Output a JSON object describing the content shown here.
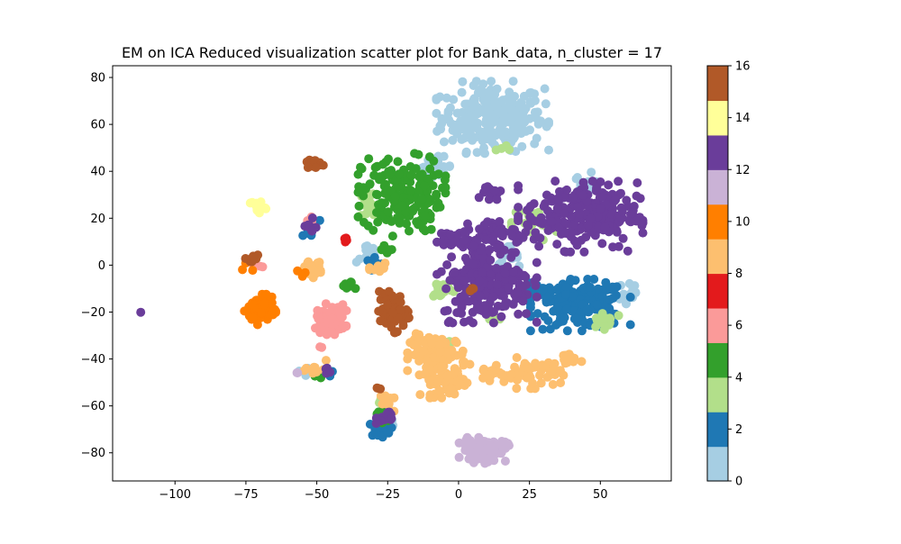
{
  "chart_data": {
    "type": "scatter",
    "title": "EM on ICA Reduced visualization scatter plot for Bank_data, n_cluster = 17",
    "xlabel": "",
    "ylabel": "",
    "xlim": [
      -122,
      75
    ],
    "ylim": [
      -92,
      85
    ],
    "xticks": [
      -100,
      -75,
      -50,
      -25,
      0,
      25,
      50
    ],
    "xtick_labels": [
      "−100",
      "−75",
      "−50",
      "−25",
      "0",
      "25",
      "50"
    ],
    "yticks": [
      -80,
      -60,
      -40,
      -20,
      0,
      20,
      40,
      60,
      80
    ],
    "ytick_labels": [
      "−80",
      "−60",
      "−40",
      "−20",
      "0",
      "20",
      "40",
      "60",
      "80"
    ],
    "grid": false,
    "colorbar": {
      "colormap": "Paired",
      "range": [
        0,
        16
      ],
      "ticks": [
        0,
        2,
        4,
        6,
        8,
        10,
        12,
        14,
        16
      ],
      "tick_labels": [
        "0",
        "2",
        "4",
        "6",
        "8",
        "10",
        "12",
        "14",
        "16"
      ],
      "colors": [
        "#a6cee3",
        "#1f78b4",
        "#b2df8a",
        "#33a02c",
        "#fb9a99",
        "#e31a1c",
        "#fdbf6f",
        "#ff7f00",
        "#cab2d6",
        "#6a3d9a",
        "#ffff99",
        "#b15928"
      ]
    },
    "clusters": [
      {
        "label": 0,
        "color": "#a6cee3",
        "cx": 12,
        "cy": 63,
        "sx": 9,
        "sy": 7,
        "n": 260
      },
      {
        "label": 0,
        "color": "#a6cee3",
        "cx": 45,
        "cy": 33,
        "sx": 2,
        "sy": 3,
        "n": 25
      },
      {
        "label": 0,
        "color": "#a6cee3",
        "cx": -8,
        "cy": 42,
        "sx": 3,
        "sy": 2,
        "n": 25
      },
      {
        "label": 0,
        "color": "#a6cee3",
        "cx": 17,
        "cy": 4,
        "sx": 2,
        "sy": 2,
        "n": 15
      },
      {
        "label": 0,
        "color": "#a6cee3",
        "cx": -32,
        "cy": 5,
        "sx": 2,
        "sy": 2,
        "n": 10
      },
      {
        "label": 0,
        "color": "#a6cee3",
        "cx": 60,
        "cy": -12,
        "sx": 2,
        "sy": 4,
        "n": 15
      },
      {
        "label": 0,
        "color": "#a6cee3",
        "cx": -25,
        "cy": -67,
        "sx": 2,
        "sy": 2,
        "n": 8
      },
      {
        "label": 0,
        "color": "#a6cee3",
        "cx": -52,
        "cy": -45,
        "sx": 2,
        "sy": 2,
        "n": 6
      },
      {
        "label": 2,
        "color": "#1f78b4",
        "cx": 43,
        "cy": -17,
        "sx": 8,
        "sy": 5,
        "n": 170
      },
      {
        "label": 2,
        "color": "#1f78b4",
        "cx": 28,
        "cy": -12,
        "sx": 3,
        "sy": 2,
        "n": 20
      },
      {
        "label": 2,
        "color": "#1f78b4",
        "cx": -28,
        "cy": -70,
        "sx": 2,
        "sy": 1.5,
        "n": 15
      },
      {
        "label": 2,
        "color": "#1f78b4",
        "cx": -53,
        "cy": 15,
        "sx": 2,
        "sy": 2,
        "n": 8
      },
      {
        "label": 2,
        "color": "#1f78b4",
        "cx": -30,
        "cy": 0,
        "sx": 2,
        "sy": 2,
        "n": 8
      },
      {
        "label": 2,
        "color": "#1f78b4",
        "cx": -45,
        "cy": -47,
        "sx": 1,
        "sy": 1,
        "n": 3
      },
      {
        "label": 4,
        "color": "#b2df8a",
        "cx": 27,
        "cy": 18,
        "sx": 4,
        "sy": 4,
        "n": 30
      },
      {
        "label": 4,
        "color": "#b2df8a",
        "cx": -31,
        "cy": 25,
        "sx": 2,
        "sy": 4,
        "n": 20
      },
      {
        "label": 4,
        "color": "#b2df8a",
        "cx": -6,
        "cy": -10,
        "sx": 2,
        "sy": 2,
        "n": 20
      },
      {
        "label": 4,
        "color": "#b2df8a",
        "cx": 52,
        "cy": -23,
        "sx": 3,
        "sy": 2,
        "n": 15
      },
      {
        "label": 4,
        "color": "#b2df8a",
        "cx": 17,
        "cy": 49,
        "sx": 2,
        "sy": 1,
        "n": 5
      },
      {
        "label": 4,
        "color": "#b2df8a",
        "cx": 12,
        "cy": -23,
        "sx": 2,
        "sy": 1,
        "n": 5
      },
      {
        "label": 4,
        "color": "#b2df8a",
        "cx": -5,
        "cy": -33,
        "sx": 2,
        "sy": 1,
        "n": 4
      },
      {
        "label": 4,
        "color": "#b2df8a",
        "cx": -28,
        "cy": -59,
        "sx": 1,
        "sy": 1,
        "n": 3
      },
      {
        "label": 5,
        "color": "#33a02c",
        "cx": -20,
        "cy": 30,
        "sx": 7,
        "sy": 8,
        "n": 190
      },
      {
        "label": 5,
        "color": "#33a02c",
        "cx": -39,
        "cy": -9,
        "sx": 1.2,
        "sy": 1,
        "n": 10
      },
      {
        "label": 5,
        "color": "#33a02c",
        "cx": -25,
        "cy": 6,
        "sx": 1.5,
        "sy": 1.5,
        "n": 6
      },
      {
        "label": 5,
        "color": "#33a02c",
        "cx": -27,
        "cy": -64,
        "sx": 2,
        "sy": 2,
        "n": 8
      },
      {
        "label": 5,
        "color": "#33a02c",
        "cx": -49,
        "cy": -46,
        "sx": 2,
        "sy": 2,
        "n": 5
      },
      {
        "label": 6,
        "color": "#fb9a99",
        "cx": -45,
        "cy": -23,
        "sx": 2.5,
        "sy": 3,
        "n": 70
      },
      {
        "label": 6,
        "color": "#fb9a99",
        "cx": -70,
        "cy": -1,
        "sx": 1,
        "sy": 1,
        "n": 3
      },
      {
        "label": 6,
        "color": "#fb9a99",
        "cx": -49,
        "cy": -35,
        "sx": 0.5,
        "sy": 0.5,
        "n": 2
      },
      {
        "label": 6,
        "color": "#fb9a99",
        "cx": -52,
        "cy": 19,
        "sx": 1,
        "sy": 1,
        "n": 3
      },
      {
        "label": 7,
        "color": "#e31a1c",
        "cx": -40,
        "cy": 11,
        "sx": 0.6,
        "sy": 0.5,
        "n": 6
      },
      {
        "label": 8,
        "color": "#fdbf6f",
        "cx": -7,
        "cy": -38,
        "sx": 5,
        "sy": 4,
        "n": 100
      },
      {
        "label": 8,
        "color": "#fdbf6f",
        "cx": -5,
        "cy": -50,
        "sx": 4,
        "sy": 3,
        "n": 50
      },
      {
        "label": 8,
        "color": "#fdbf6f",
        "cx": 26,
        "cy": -46,
        "sx": 5,
        "sy": 3,
        "n": 60
      },
      {
        "label": 8,
        "color": "#fdbf6f",
        "cx": 39,
        "cy": -40,
        "sx": 2,
        "sy": 1.5,
        "n": 15
      },
      {
        "label": 8,
        "color": "#fdbf6f",
        "cx": 11,
        "cy": -46,
        "sx": 2,
        "sy": 1.5,
        "n": 15
      },
      {
        "label": 8,
        "color": "#fdbf6f",
        "cx": -52,
        "cy": -1,
        "sx": 2,
        "sy": 2,
        "n": 25
      },
      {
        "label": 8,
        "color": "#fdbf6f",
        "cx": -25,
        "cy": -59,
        "sx": 2,
        "sy": 1.5,
        "n": 10
      },
      {
        "label": 8,
        "color": "#fdbf6f",
        "cx": -27,
        "cy": -1,
        "sx": 2,
        "sy": 1.5,
        "n": 10
      },
      {
        "label": 8,
        "color": "#fdbf6f",
        "cx": -50,
        "cy": -45,
        "sx": 2,
        "sy": 2,
        "n": 8
      },
      {
        "label": 10,
        "color": "#ff7f00",
        "cx": -70,
        "cy": -19,
        "sx": 2.5,
        "sy": 3,
        "n": 80
      },
      {
        "label": 10,
        "color": "#ff7f00",
        "cx": -56,
        "cy": -4,
        "sx": 1,
        "sy": 1,
        "n": 3
      },
      {
        "label": 10,
        "color": "#ff7f00",
        "cx": -74,
        "cy": -1,
        "sx": 1,
        "sy": 1,
        "n": 3
      },
      {
        "label": 12,
        "color": "#cab2d6",
        "cx": 9,
        "cy": -79,
        "sx": 4,
        "sy": 2.5,
        "n": 90
      },
      {
        "label": 12,
        "color": "#cab2d6",
        "cx": -57,
        "cy": -46,
        "sx": 0.5,
        "sy": 0.5,
        "n": 2
      },
      {
        "label": 13,
        "color": "#6a3d9a",
        "cx": 43,
        "cy": 21,
        "sx": 10,
        "sy": 7,
        "n": 260
      },
      {
        "label": 13,
        "color": "#6a3d9a",
        "cx": 10,
        "cy": -7,
        "sx": 8,
        "sy": 8,
        "n": 230
      },
      {
        "label": 13,
        "color": "#6a3d9a",
        "cx": 12,
        "cy": 13,
        "sx": 4,
        "sy": 3,
        "n": 40
      },
      {
        "label": 13,
        "color": "#6a3d9a",
        "cx": 1,
        "cy": 11,
        "sx": 4,
        "sy": 2,
        "n": 25
      },
      {
        "label": 13,
        "color": "#6a3d9a",
        "cx": 11,
        "cy": 31,
        "sx": 2,
        "sy": 2,
        "n": 15
      },
      {
        "label": 13,
        "color": "#6a3d9a",
        "cx": -25,
        "cy": -65,
        "sx": 2,
        "sy": 1.5,
        "n": 12
      },
      {
        "label": 13,
        "color": "#6a3d9a",
        "cx": -52,
        "cy": 16,
        "sx": 1,
        "sy": 2,
        "n": 8
      },
      {
        "label": 13,
        "color": "#6a3d9a",
        "cx": -47,
        "cy": -45,
        "sx": 1,
        "sy": 1,
        "n": 4
      },
      {
        "label": 13,
        "color": "#6a3d9a",
        "cx": -112,
        "cy": -20,
        "sx": 0.1,
        "sy": 0.1,
        "n": 1
      },
      {
        "label": 14,
        "color": "#ffff99",
        "cx": -71,
        "cy": 25,
        "sx": 1.5,
        "sy": 1.5,
        "n": 15
      },
      {
        "label": 16,
        "color": "#b15928",
        "cx": -23,
        "cy": -20,
        "sx": 2.5,
        "sy": 4,
        "n": 60
      },
      {
        "label": 16,
        "color": "#b15928",
        "cx": -51,
        "cy": 43,
        "sx": 1.5,
        "sy": 1,
        "n": 15
      },
      {
        "label": 16,
        "color": "#b15928",
        "cx": -73,
        "cy": 3,
        "sx": 2,
        "sy": 1.5,
        "n": 10
      },
      {
        "label": 16,
        "color": "#b15928",
        "cx": -28,
        "cy": -53,
        "sx": 0.5,
        "sy": 0.5,
        "n": 3
      },
      {
        "label": 16,
        "color": "#b15928",
        "cx": 4,
        "cy": -10,
        "sx": 1,
        "sy": 1,
        "n": 3
      }
    ]
  }
}
